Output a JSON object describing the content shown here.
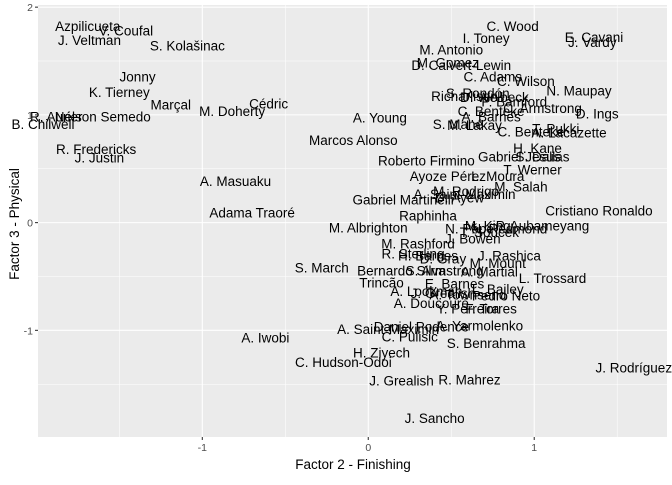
{
  "chart_data": {
    "type": "scatter",
    "xlabel": "Factor 2 - Finishing",
    "ylabel": "Factor 3 - Physical",
    "xlim": [
      -1.99,
      1.8
    ],
    "ylim": [
      -1.99,
      2.02
    ],
    "x_ticks": [
      -1,
      0,
      1
    ],
    "y_ticks": [
      -1,
      0,
      1,
      2
    ],
    "grid": true,
    "points": [
      {
        "label": "Azpilicueta",
        "x": -1.69,
        "y": 1.82
      },
      {
        "label": "J. Veltman",
        "x": -1.68,
        "y": 1.69
      },
      {
        "label": "V. Coufal",
        "x": -1.46,
        "y": 1.78
      },
      {
        "label": "S. Kolašinac",
        "x": -1.09,
        "y": 1.64
      },
      {
        "label": "Jonny",
        "x": -1.39,
        "y": 1.35
      },
      {
        "label": "K. Tierney",
        "x": -1.5,
        "y": 1.21
      },
      {
        "label": "Marçal",
        "x": -1.19,
        "y": 1.09
      },
      {
        "label": "Cédric",
        "x": -0.6,
        "y": 1.1
      },
      {
        "label": "M. Doherty",
        "x": -0.82,
        "y": 1.03
      },
      {
        "label": "Nélson Semedo",
        "x": -1.6,
        "y": 0.98
      },
      {
        "label": "R. Aurier",
        "x": -1.88,
        "y": 0.98
      },
      {
        "label": "B. Chilwell",
        "x": -1.96,
        "y": 0.91
      },
      {
        "label": "R. Fredericks",
        "x": -1.64,
        "y": 0.68
      },
      {
        "label": "J. Justin",
        "x": -1.62,
        "y": 0.6
      },
      {
        "label": "A. Masuaku",
        "x": -0.8,
        "y": 0.38
      },
      {
        "label": "Adama Traoré",
        "x": -0.7,
        "y": 0.09
      },
      {
        "label": "C. Wood",
        "x": 0.87,
        "y": 1.82
      },
      {
        "label": "I. Toney",
        "x": 0.71,
        "y": 1.71
      },
      {
        "label": "E. Cavani",
        "x": 1.36,
        "y": 1.72
      },
      {
        "label": "J. Vardy",
        "x": 1.35,
        "y": 1.67
      },
      {
        "label": "M. Antonio",
        "x": 0.5,
        "y": 1.6
      },
      {
        "label": "M. Gomez",
        "x": 0.48,
        "y": 1.48
      },
      {
        "label": "D. Calvert-Lewin",
        "x": 0.56,
        "y": 1.46
      },
      {
        "label": "C. Adams",
        "x": 0.75,
        "y": 1.35
      },
      {
        "label": "C. Wilson",
        "x": 0.95,
        "y": 1.31
      },
      {
        "label": "N. Maupay",
        "x": 1.27,
        "y": 1.22
      },
      {
        "label": "Richarlison",
        "x": 0.58,
        "y": 1.17
      },
      {
        "label": "S. Rondón",
        "x": 0.66,
        "y": 1.2
      },
      {
        "label": "D. Welbeck",
        "x": 0.76,
        "y": 1.16
      },
      {
        "label": "P. Bamford",
        "x": 0.88,
        "y": 1.12
      },
      {
        "label": "C. Armstrong",
        "x": 1.05,
        "y": 1.06
      },
      {
        "label": "C. Benteke",
        "x": 0.74,
        "y": 1.03
      },
      {
        "label": "D. Ings",
        "x": 1.38,
        "y": 1.01
      },
      {
        "label": "A. Barnes",
        "x": 0.74,
        "y": 0.98
      },
      {
        "label": "A. Young",
        "x": 0.07,
        "y": 0.97
      },
      {
        "label": "S. Mané",
        "x": 0.54,
        "y": 0.91
      },
      {
        "label": "M. Lakay",
        "x": 0.64,
        "y": 0.9
      },
      {
        "label": "T. Pukki",
        "x": 1.13,
        "y": 0.87
      },
      {
        "label": "A. Lacazette",
        "x": 1.21,
        "y": 0.83
      },
      {
        "label": "C. Benteke",
        "x": 0.98,
        "y": 0.84
      },
      {
        "label": "Marcos Alonso",
        "x": -0.09,
        "y": 0.76
      },
      {
        "label": "H. Kane",
        "x": 1.02,
        "y": 0.69
      },
      {
        "label": "Gabriel Jesus",
        "x": 0.91,
        "y": 0.61
      },
      {
        "label": "S. Dallas",
        "x": 1.05,
        "y": 0.61
      },
      {
        "label": "Roberto Firmino",
        "x": 0.35,
        "y": 0.57
      },
      {
        "label": "T. Werner",
        "x": 0.99,
        "y": 0.49
      },
      {
        "label": "Ayoze Pérez",
        "x": 0.48,
        "y": 0.43
      },
      {
        "label": "L. Moura",
        "x": 0.78,
        "y": 0.43
      },
      {
        "label": "M. Salah",
        "x": 0.92,
        "y": 0.33
      },
      {
        "label": "M. Rodrigo",
        "x": 0.59,
        "y": 0.29
      },
      {
        "label": "A. Saint-Maximin",
        "x": 0.58,
        "y": 0.26
      },
      {
        "label": "D. Ayew",
        "x": 0.55,
        "y": 0.23
      },
      {
        "label": "Cristiano Ronaldo",
        "x": 1.39,
        "y": 0.11
      },
      {
        "label": "Gabriel Martinelli",
        "x": 0.21,
        "y": 0.21
      },
      {
        "label": "Raphinha",
        "x": 0.36,
        "y": 0.06
      },
      {
        "label": "P. Aubameyang",
        "x": 1.05,
        "y": -0.03
      },
      {
        "label": "M. Albrighton",
        "x": 0.0,
        "y": -0.05
      },
      {
        "label": "M. King",
        "x": 0.72,
        "y": -0.03
      },
      {
        "label": "N. Pépé",
        "x": 0.61,
        "y": -0.06
      },
      {
        "label": "N. Redmond",
        "x": 0.85,
        "y": -0.06
      },
      {
        "label": "T. Soucek",
        "x": 0.73,
        "y": -0.09
      },
      {
        "label": "J. Bowen",
        "x": 0.63,
        "y": -0.15
      },
      {
        "label": "M. Rashford",
        "x": 0.3,
        "y": -0.2
      },
      {
        "label": "R. Sterling",
        "x": 0.27,
        "y": -0.29
      },
      {
        "label": "H. Barnes",
        "x": 0.36,
        "y": -0.31
      },
      {
        "label": "D. Gray",
        "x": 0.45,
        "y": -0.34
      },
      {
        "label": "J. Rashica",
        "x": 0.85,
        "y": -0.31
      },
      {
        "label": "M. Mount",
        "x": 0.78,
        "y": -0.38
      },
      {
        "label": "S. March",
        "x": -0.28,
        "y": -0.42
      },
      {
        "label": "Bernardo Silva",
        "x": 0.2,
        "y": -0.45
      },
      {
        "label": "S. Armstrong",
        "x": 0.46,
        "y": -0.45
      },
      {
        "label": "A. Martial",
        "x": 0.73,
        "y": -0.46
      },
      {
        "label": "L. Trossard",
        "x": 1.11,
        "y": -0.52
      },
      {
        "label": "Trincão",
        "x": 0.08,
        "y": -0.56
      },
      {
        "label": "E. Barnes",
        "x": 0.52,
        "y": -0.57
      },
      {
        "label": "A. Lookman",
        "x": 0.35,
        "y": -0.64
      },
      {
        "label": "L. Bailey",
        "x": 0.78,
        "y": -0.62
      },
      {
        "label": "J. Grealish",
        "x": 0.45,
        "y": -0.66
      },
      {
        "label": "Pedro Neto",
        "x": 0.83,
        "y": -0.68
      },
      {
        "label": "A. Townsend",
        "x": 0.6,
        "y": -0.67
      },
      {
        "label": "A. Doucouré",
        "x": 0.38,
        "y": -0.75
      },
      {
        "label": "Y. Perreira",
        "x": 0.6,
        "y": -0.8
      },
      {
        "label": "F. Torres",
        "x": 0.74,
        "y": -0.8
      },
      {
        "label": "A. Iwobi",
        "x": -0.62,
        "y": -1.07
      },
      {
        "label": "A. Saint-Maximin",
        "x": 0.12,
        "y": -0.99
      },
      {
        "label": "Daniel Podence",
        "x": 0.32,
        "y": -0.97
      },
      {
        "label": "A. Yarmolenko",
        "x": 0.67,
        "y": -0.96
      },
      {
        "label": "C. Pulisic",
        "x": 0.25,
        "y": -1.06
      },
      {
        "label": "S. Benrahma",
        "x": 0.71,
        "y": -1.12
      },
      {
        "label": "H. Ziyech",
        "x": 0.08,
        "y": -1.21
      },
      {
        "label": "C. Hudson-Odoi",
        "x": -0.15,
        "y": -1.3
      },
      {
        "label": "J. Rodríguez",
        "x": 1.6,
        "y": -1.35
      },
      {
        "label": "J. Grealish",
        "x": 0.2,
        "y": -1.47
      },
      {
        "label": "R. Mahrez",
        "x": 0.61,
        "y": -1.46
      },
      {
        "label": "J. Sancho",
        "x": 0.4,
        "y": -1.82
      }
    ]
  }
}
